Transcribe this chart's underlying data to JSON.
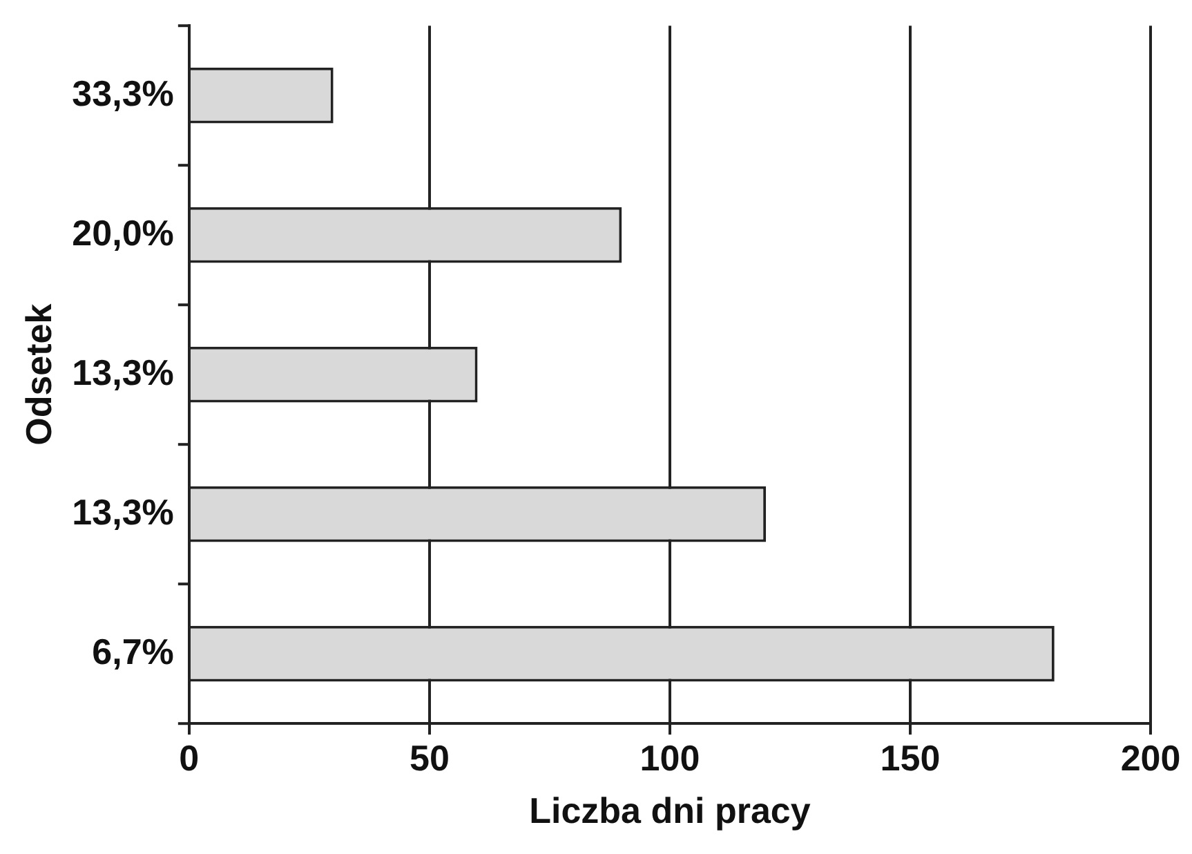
{
  "chart_data": {
    "type": "bar",
    "orientation": "horizontal",
    "xlabel": "Liczba dni pracy",
    "ylabel": "Odsetek",
    "categories": [
      "33,3%",
      "20,0%",
      "13,3%",
      "13,3%",
      "6,7%"
    ],
    "values": [
      30,
      90,
      60,
      120,
      180
    ],
    "color": "#d9d9d9",
    "xlim": [
      0,
      200
    ],
    "xticks": [
      0,
      50,
      100,
      150,
      200
    ],
    "grid": "x"
  }
}
